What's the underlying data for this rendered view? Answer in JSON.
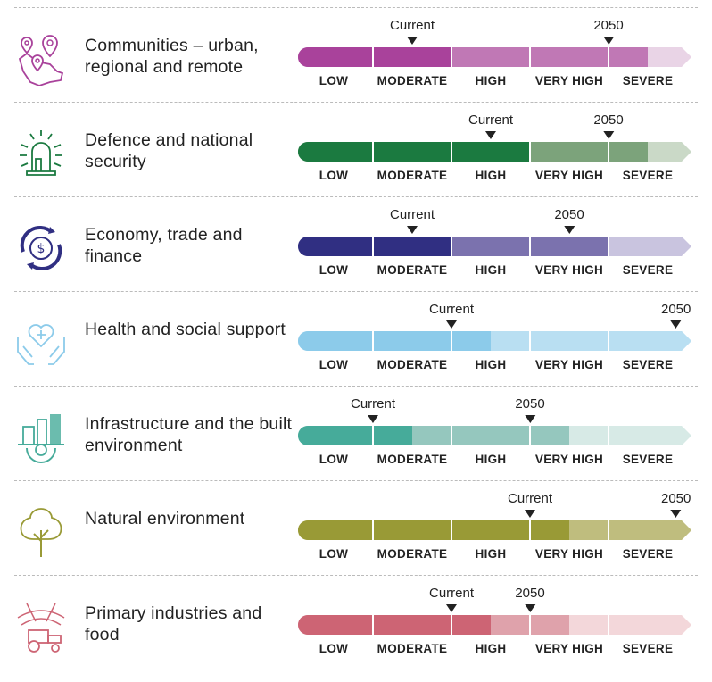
{
  "chart_data": {
    "type": "table",
    "levels": [
      "LOW",
      "MODERATE",
      "HIGH",
      "VERY HIGH",
      "SEVERE"
    ],
    "scale": [
      0,
      5
    ],
    "marker_labels": {
      "current": "Current",
      "future": "2050"
    },
    "rows": [
      {
        "title": "Communities – urban, regional and remote",
        "icon": "map-pins-icon",
        "current": 1.5,
        "future": 4.0,
        "colors": {
          "dark": "#a9429b",
          "medium": "#c078b5",
          "light": "#e9d4e6"
        }
      },
      {
        "title": "Defence and national security",
        "icon": "siren-icon",
        "current": 2.5,
        "future": 4.0,
        "colors": {
          "dark": "#1b7a40",
          "medium": "#7ca37b",
          "light": "#cad9c7"
        }
      },
      {
        "title": "Economy, trade and finance",
        "icon": "currency-cycle-icon",
        "current": 1.5,
        "future": 3.5,
        "colors": {
          "dark": "#302f82",
          "medium": "#7b72ae",
          "light": "#c9c4df"
        }
      },
      {
        "title": "Health and social support",
        "icon": "heart-hands-icon",
        "current": 2.0,
        "future": 4.86,
        "colors": {
          "dark": "#8ccbea",
          "medium": "#b9dff2",
          "light": "#b9dff2"
        }
      },
      {
        "title": "Infrastructure and the built environment",
        "icon": "buildings-gear-icon",
        "current": 1.0,
        "future": 3.0,
        "colors": {
          "dark": "#46ab9a",
          "medium": "#95c7be",
          "light": "#d7eae6"
        }
      },
      {
        "title": "Natural environment",
        "icon": "tree-icon",
        "current": 3.0,
        "future": 4.86,
        "colors": {
          "dark": "#999a36",
          "medium": "#bfbd7e",
          "light": "#e3e2c4"
        }
      },
      {
        "title": "Primary industries and food",
        "icon": "tractor-icon",
        "current": 2.0,
        "future": 3.0,
        "colors": {
          "dark": "#cd6474",
          "medium": "#dfa2ab",
          "light": "#f3d7da"
        }
      }
    ]
  }
}
